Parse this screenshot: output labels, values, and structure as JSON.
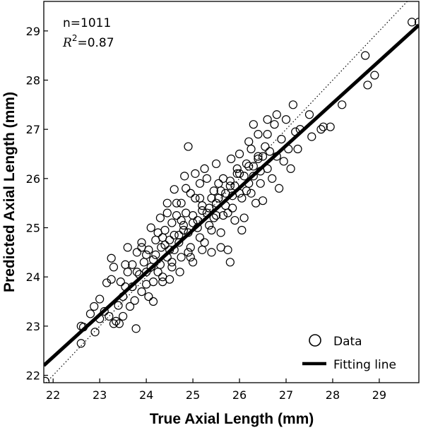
{
  "chart_data": {
    "type": "scatter",
    "title": "",
    "xlabel": "True Axial Length (mm)",
    "ylabel": "Predicted Axial Length (mm)",
    "xlim": [
      21.8,
      29.85
    ],
    "ylim": [
      21.85,
      29.6
    ],
    "xticks": [
      22,
      23,
      24,
      25,
      26,
      27,
      28,
      29
    ],
    "yticks": [
      22,
      23,
      24,
      25,
      26,
      27,
      28,
      29
    ],
    "grid": false,
    "legend_position": "bottom-right",
    "annotation": {
      "n_text": "n=1011",
      "r2_symbol": "R",
      "r2_exp": "2",
      "r2_value": "=0.87"
    },
    "colors": {
      "points": "#000000",
      "fit_line": "#000000",
      "identity_line": "#000000"
    },
    "series": [
      {
        "name": "Data",
        "kind": "scatter",
        "marker": "open-circle",
        "points": [
          [
            21.83,
            21.88
          ],
          [
            22.6,
            22.65
          ],
          [
            22.6,
            23.0
          ],
          [
            22.65,
            22.98
          ],
          [
            22.8,
            23.25
          ],
          [
            22.9,
            22.88
          ],
          [
            23.0,
            23.15
          ],
          [
            23.0,
            23.55
          ],
          [
            22.88,
            23.4
          ],
          [
            23.1,
            23.3
          ],
          [
            23.2,
            23.2
          ],
          [
            23.15,
            23.88
          ],
          [
            23.25,
            23.95
          ],
          [
            23.25,
            24.38
          ],
          [
            23.3,
            23.05
          ],
          [
            23.35,
            23.1
          ],
          [
            23.42,
            23.05
          ],
          [
            23.4,
            23.42
          ],
          [
            23.5,
            23.2
          ],
          [
            23.55,
            23.8
          ],
          [
            23.6,
            24.1
          ],
          [
            23.6,
            24.6
          ],
          [
            23.7,
            24.25
          ],
          [
            23.75,
            23.52
          ],
          [
            23.78,
            22.95
          ],
          [
            23.8,
            24.5
          ],
          [
            23.85,
            24.05
          ],
          [
            23.9,
            24.7
          ],
          [
            23.95,
            24.3
          ],
          [
            24.0,
            23.85
          ],
          [
            24.05,
            24.55
          ],
          [
            24.1,
            25.0
          ],
          [
            24.15,
            24.35
          ],
          [
            24.15,
            23.5
          ],
          [
            24.2,
            24.75
          ],
          [
            24.25,
            24.1
          ],
          [
            24.3,
            25.2
          ],
          [
            24.32,
            24.6
          ],
          [
            24.35,
            23.9
          ],
          [
            24.4,
            24.95
          ],
          [
            24.45,
            24.4
          ],
          [
            24.45,
            25.5
          ],
          [
            24.5,
            24.75
          ],
          [
            24.5,
            23.95
          ],
          [
            24.55,
            25.1
          ],
          [
            24.6,
            24.55
          ],
          [
            24.6,
            25.78
          ],
          [
            24.65,
            25.25
          ],
          [
            24.7,
            24.85
          ],
          [
            24.72,
            24.1
          ],
          [
            24.75,
            25.5
          ],
          [
            24.8,
            24.95
          ],
          [
            24.82,
            26.05
          ],
          [
            24.85,
            25.3
          ],
          [
            24.9,
            24.5
          ],
          [
            24.95,
            25.7
          ],
          [
            25.0,
            25.1
          ],
          [
            25.0,
            24.3
          ],
          [
            25.05,
            25.6
          ],
          [
            25.1,
            25.0
          ],
          [
            25.15,
            25.9
          ],
          [
            25.2,
            25.35
          ],
          [
            25.25,
            24.7
          ],
          [
            25.3,
            26.0
          ],
          [
            25.35,
            25.4
          ],
          [
            25.4,
            24.95
          ],
          [
            25.45,
            25.75
          ],
          [
            25.5,
            25.25
          ],
          [
            25.5,
            26.3
          ],
          [
            25.55,
            25.6
          ],
          [
            25.6,
            24.9
          ],
          [
            25.65,
            26.0
          ],
          [
            25.7,
            25.45
          ],
          [
            25.75,
            24.55
          ],
          [
            25.8,
            25.85
          ],
          [
            25.82,
            26.4
          ],
          [
            25.85,
            25.65
          ],
          [
            25.9,
            25.15
          ],
          [
            25.95,
            26.1
          ],
          [
            26.0,
            25.7
          ],
          [
            26.05,
            24.95
          ],
          [
            26.1,
            25.2
          ],
          [
            26.15,
            26.3
          ],
          [
            26.2,
            25.9
          ],
          [
            26.25,
            26.6
          ],
          [
            26.3,
            26.05
          ],
          [
            26.35,
            25.5
          ],
          [
            26.4,
            26.45
          ],
          [
            26.45,
            26.15
          ],
          [
            26.5,
            25.55
          ],
          [
            26.55,
            26.65
          ],
          [
            26.6,
            26.2
          ],
          [
            26.6,
            27.2
          ],
          [
            26.65,
            26.55
          ],
          [
            26.7,
            26.0
          ],
          [
            26.75,
            27.1
          ],
          [
            26.8,
            26.45
          ],
          [
            26.85,
            25.8
          ],
          [
            26.9,
            26.8
          ],
          [
            26.95,
            26.35
          ],
          [
            27.0,
            27.2
          ],
          [
            27.05,
            26.6
          ],
          [
            27.1,
            26.2
          ],
          [
            27.15,
            27.5
          ],
          [
            27.2,
            26.95
          ],
          [
            27.25,
            26.6
          ],
          [
            27.3,
            27.0
          ],
          [
            27.5,
            27.3
          ],
          [
            27.55,
            26.85
          ],
          [
            27.75,
            27.0
          ],
          [
            27.8,
            27.05
          ],
          [
            27.95,
            27.05
          ],
          [
            28.2,
            27.5
          ],
          [
            28.7,
            28.5
          ],
          [
            28.75,
            27.9
          ],
          [
            28.9,
            28.1
          ],
          [
            29.7,
            29.18
          ],
          [
            29.85,
            29.18
          ],
          [
            24.0,
            24.45
          ],
          [
            24.1,
            24.2
          ],
          [
            24.2,
            24.45
          ],
          [
            24.3,
            24.25
          ],
          [
            24.4,
            24.65
          ],
          [
            24.5,
            24.55
          ],
          [
            24.6,
            24.85
          ],
          [
            24.7,
            24.7
          ],
          [
            24.8,
            25.05
          ],
          [
            24.9,
            24.9
          ],
          [
            25.0,
            25.25
          ],
          [
            25.1,
            25.15
          ],
          [
            25.2,
            25.45
          ],
          [
            25.3,
            25.3
          ],
          [
            25.4,
            25.6
          ],
          [
            25.5,
            25.5
          ],
          [
            25.6,
            25.75
          ],
          [
            25.7,
            25.7
          ],
          [
            25.8,
            25.95
          ],
          [
            25.9,
            25.85
          ],
          [
            26.0,
            26.1
          ],
          [
            26.1,
            26.05
          ],
          [
            26.2,
            26.25
          ],
          [
            26.3,
            26.25
          ],
          [
            26.4,
            26.4
          ],
          [
            26.5,
            26.45
          ],
          [
            24.35,
            24.8
          ],
          [
            24.55,
            24.3
          ],
          [
            24.75,
            25.15
          ],
          [
            24.95,
            24.6
          ],
          [
            25.15,
            25.6
          ],
          [
            25.35,
            25.05
          ],
          [
            25.55,
            25.9
          ],
          [
            25.75,
            25.3
          ],
          [
            25.95,
            26.2
          ],
          [
            26.15,
            25.75
          ],
          [
            23.7,
            23.8
          ],
          [
            23.8,
            24.1
          ],
          [
            23.9,
            23.7
          ],
          [
            24.0,
            24.1
          ],
          [
            23.5,
            23.6
          ],
          [
            23.65,
            23.4
          ],
          [
            24.25,
            24.9
          ],
          [
            24.45,
            25.3
          ],
          [
            24.65,
            25.5
          ],
          [
            24.85,
            25.8
          ],
          [
            25.05,
            26.1
          ],
          [
            25.25,
            26.2
          ],
          [
            24.15,
            23.9
          ],
          [
            24.35,
            24.0
          ],
          [
            24.55,
            24.2
          ],
          [
            24.75,
            24.4
          ],
          [
            24.95,
            24.4
          ],
          [
            25.15,
            24.8
          ],
          [
            25.45,
            25.2
          ],
          [
            25.65,
            25.25
          ],
          [
            25.85,
            25.4
          ],
          [
            26.05,
            25.6
          ],
          [
            26.25,
            25.7
          ],
          [
            26.45,
            25.9
          ],
          [
            26.0,
            26.5
          ],
          [
            26.2,
            26.75
          ],
          [
            26.4,
            26.9
          ],
          [
            26.6,
            26.9
          ],
          [
            26.8,
            27.3
          ],
          [
            26.3,
            27.1
          ],
          [
            25.2,
            24.55
          ],
          [
            25.4,
            24.5
          ],
          [
            25.6,
            24.6
          ],
          [
            25.8,
            24.3
          ],
          [
            24.9,
            26.65
          ],
          [
            23.3,
            24.2
          ],
          [
            23.9,
            24.6
          ],
          [
            23.45,
            23.9
          ],
          [
            23.55,
            24.25
          ],
          [
            24.05,
            23.6
          ]
        ]
      },
      {
        "name": "Fitting line",
        "kind": "line",
        "points": [
          [
            21.8,
            22.2
          ],
          [
            29.85,
            29.12
          ]
        ]
      },
      {
        "kind": "line",
        "style": "dotted",
        "points": [
          [
            21.8,
            21.8
          ],
          [
            29.85,
            29.85
          ]
        ]
      }
    ]
  }
}
